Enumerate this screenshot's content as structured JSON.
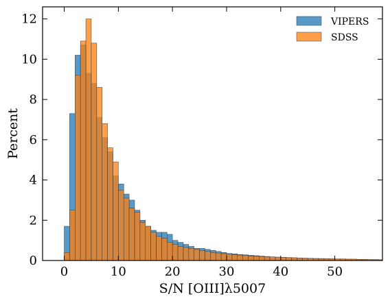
{
  "chart_data": {
    "type": "bar",
    "xlabel": "S/N [OIII]λ5007",
    "ylabel": "Percent",
    "xlim": [
      -4,
      58.8
    ],
    "ylim": [
      0,
      12.6
    ],
    "xticks": [
      0,
      10,
      20,
      30,
      40,
      50
    ],
    "yticks": [
      0,
      2,
      4,
      6,
      8,
      10,
      12
    ],
    "bin_width": 1,
    "legend_position": "top-right",
    "series": [
      {
        "name": "VIPERS",
        "color": "#1f77b4",
        "bin_starts": [
          0,
          1,
          2,
          3,
          4,
          5,
          6,
          7,
          8,
          9,
          10,
          11,
          12,
          13,
          14,
          15,
          16,
          17,
          18,
          19,
          20,
          21,
          22,
          23,
          24,
          25,
          26,
          27,
          28,
          29,
          30,
          31,
          32,
          33,
          34,
          35,
          36,
          37,
          38,
          39,
          40,
          41,
          42,
          43,
          44,
          45,
          46,
          47,
          48,
          49,
          50,
          51,
          52,
          53,
          54,
          55,
          56,
          57,
          58
        ],
        "values": [
          1.7,
          7.3,
          10.2,
          10.7,
          9.3,
          8.8,
          7.1,
          6.1,
          5.4,
          4.2,
          3.8,
          3.3,
          3.0,
          2.5,
          2.0,
          1.7,
          1.5,
          1.4,
          1.4,
          1.3,
          1.0,
          0.9,
          0.8,
          0.7,
          0.6,
          0.6,
          0.55,
          0.5,
          0.45,
          0.4,
          0.35,
          0.33,
          0.3,
          0.28,
          0.26,
          0.24,
          0.22,
          0.2,
          0.18,
          0.16,
          0.15,
          0.14,
          0.13,
          0.12,
          0.11,
          0.1,
          0.1,
          0.09,
          0.08,
          0.08,
          0.07,
          0.07,
          0.06,
          0.06,
          0.05,
          0.05,
          0.04,
          0.04,
          0.03
        ]
      },
      {
        "name": "SDSS",
        "color": "#ff7f0e",
        "bin_starts": [
          0,
          1,
          2,
          3,
          4,
          5,
          6,
          7,
          8,
          9,
          10,
          11,
          12,
          13,
          14,
          15,
          16,
          17,
          18,
          19,
          20,
          21,
          22,
          23,
          24,
          25,
          26,
          27,
          28,
          29,
          30,
          31,
          32,
          33,
          34,
          35,
          36,
          37,
          38,
          39,
          40,
          41,
          42,
          43,
          44,
          45,
          46,
          47,
          48,
          49,
          50,
          51,
          52,
          53,
          54,
          55,
          56,
          57,
          58
        ],
        "values": [
          0.4,
          2.5,
          9.2,
          10.9,
          12.0,
          10.8,
          8.6,
          6.8,
          5.6,
          4.9,
          3.5,
          3.1,
          2.6,
          2.4,
          1.9,
          1.7,
          1.4,
          1.2,
          1.1,
          0.9,
          0.8,
          0.7,
          0.65,
          0.6,
          0.55,
          0.5,
          0.45,
          0.4,
          0.37,
          0.34,
          0.31,
          0.29,
          0.27,
          0.25,
          0.23,
          0.21,
          0.2,
          0.19,
          0.18,
          0.17,
          0.16,
          0.15,
          0.14,
          0.13,
          0.12,
          0.11,
          0.1,
          0.1,
          0.09,
          0.09,
          0.08,
          0.08,
          0.07,
          0.07,
          0.06,
          0.06,
          0.05,
          0.05,
          0.04
        ]
      }
    ]
  }
}
